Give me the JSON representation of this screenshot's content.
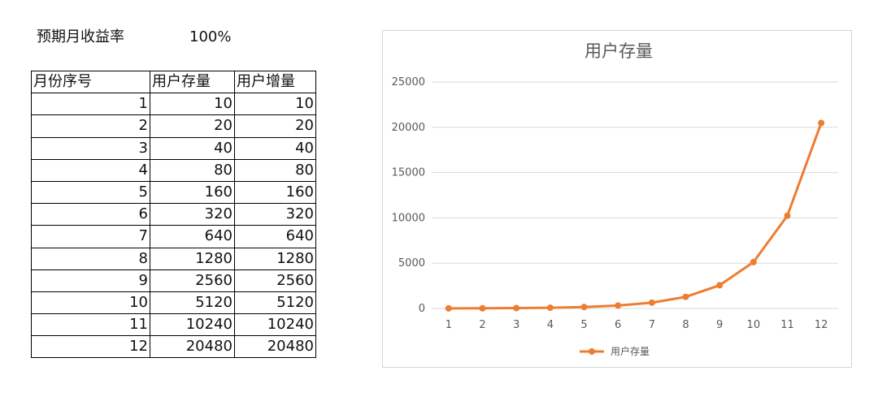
{
  "header": {
    "rate_label": "预期月收益率",
    "rate_value": "100%"
  },
  "table": {
    "columns": [
      "月份序号",
      "用户存量",
      "用户增量"
    ],
    "rows": [
      [
        "1",
        "10",
        "10"
      ],
      [
        "2",
        "20",
        "20"
      ],
      [
        "3",
        "40",
        "40"
      ],
      [
        "4",
        "80",
        "80"
      ],
      [
        "5",
        "160",
        "160"
      ],
      [
        "6",
        "320",
        "320"
      ],
      [
        "7",
        "640",
        "640"
      ],
      [
        "8",
        "1280",
        "1280"
      ],
      [
        "9",
        "2560",
        "2560"
      ],
      [
        "10",
        "5120",
        "5120"
      ],
      [
        "11",
        "10240",
        "10240"
      ],
      [
        "12",
        "20480",
        "20480"
      ]
    ]
  },
  "chart_data": {
    "type": "line",
    "title": "用户存量",
    "categories": [
      "1",
      "2",
      "3",
      "4",
      "5",
      "6",
      "7",
      "8",
      "9",
      "10",
      "11",
      "12"
    ],
    "series": [
      {
        "name": "用户存量",
        "values": [
          10,
          20,
          40,
          80,
          160,
          320,
          640,
          1280,
          2560,
          5120,
          10240,
          20480
        ],
        "color": "#ED7D31"
      }
    ],
    "ylim": [
      0,
      25000
    ],
    "yticks": [
      "0",
      "5000",
      "10000",
      "15000",
      "20000",
      "25000"
    ],
    "grid": true,
    "legend": "bottom",
    "gridColor": "#d9d9d9"
  }
}
